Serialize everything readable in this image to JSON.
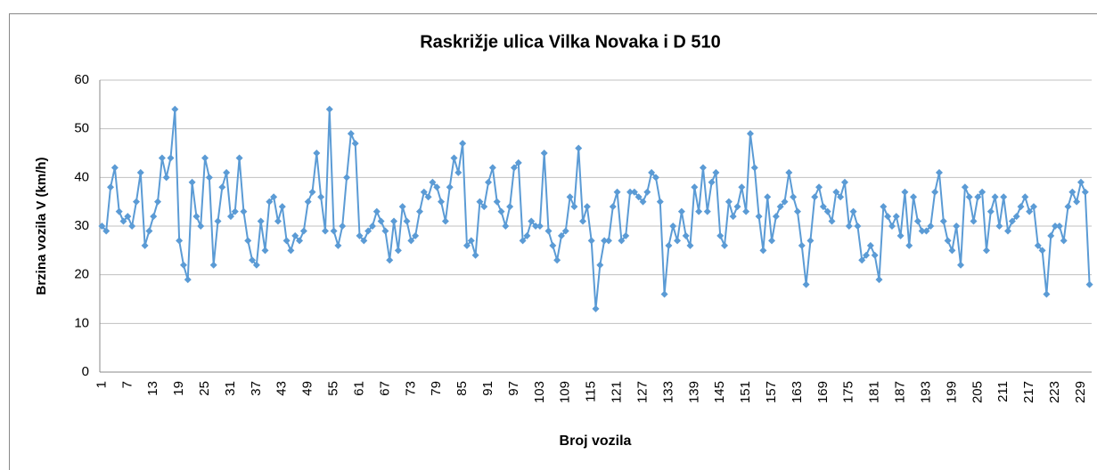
{
  "chart_data": {
    "type": "line",
    "title": "Raskrižje ulica Vilka Novaka i D 510",
    "x_label": "Broj vozila",
    "y_label": "Brzina vozila V (km/h)",
    "color": "#5b9bd5",
    "grid": true,
    "ylim": [
      0,
      60
    ],
    "yticks": [
      0,
      10,
      20,
      30,
      40,
      50,
      60
    ],
    "categories": [
      "1",
      null,
      null,
      null,
      null,
      null,
      "7",
      null,
      null,
      null,
      null,
      null,
      "13",
      null,
      null,
      null,
      null,
      null,
      "19",
      null,
      null,
      null,
      null,
      null,
      "25",
      null,
      null,
      null,
      null,
      null,
      "31",
      null,
      null,
      null,
      null,
      null,
      "37",
      null,
      null,
      null,
      null,
      null,
      "43",
      null,
      null,
      null,
      null,
      null,
      "49",
      null,
      null,
      null,
      null,
      null,
      "55",
      null,
      null,
      null,
      null,
      null,
      "61",
      null,
      null,
      null,
      null,
      null,
      "67",
      null,
      null,
      null,
      null,
      null,
      "73",
      null,
      null,
      null,
      null,
      null,
      "79",
      null,
      null,
      null,
      null,
      null,
      "85",
      null,
      null,
      null,
      null,
      null,
      "91",
      null,
      null,
      null,
      null,
      null,
      "97",
      null,
      null,
      null,
      null,
      null,
      "103",
      null,
      null,
      null,
      null,
      null,
      "109",
      null,
      null,
      null,
      null,
      null,
      "115",
      null,
      null,
      null,
      null,
      null,
      "121",
      null,
      null,
      null,
      null,
      null,
      "127",
      null,
      null,
      null,
      null,
      null,
      "133",
      null,
      null,
      null,
      null,
      null,
      "139",
      null,
      null,
      null,
      null,
      null,
      "145",
      null,
      null,
      null,
      null,
      null,
      "151",
      null,
      null,
      null,
      null,
      null,
      "157",
      null,
      null,
      null,
      null,
      null,
      "163",
      null,
      null,
      null,
      null,
      null,
      "169",
      null,
      null,
      null,
      null,
      null,
      "175",
      null,
      null,
      null,
      null,
      null,
      "181",
      null,
      null,
      null,
      null,
      null,
      "187",
      null,
      null,
      null,
      null,
      null,
      "193",
      null,
      null,
      null,
      null,
      null,
      "199",
      null,
      null,
      null,
      null,
      null,
      "205",
      null,
      null,
      null,
      null,
      null,
      "211",
      null,
      null,
      null,
      null,
      null,
      "217",
      null,
      null,
      null,
      null,
      null,
      "223",
      null,
      null,
      null,
      null,
      null,
      "229",
      null,
      null
    ],
    "values": [
      30,
      29,
      38,
      42,
      33,
      31,
      32,
      30,
      35,
      41,
      26,
      29,
      32,
      35,
      44,
      40,
      44,
      54,
      27,
      22,
      19,
      39,
      32,
      30,
      44,
      40,
      22,
      31,
      38,
      41,
      32,
      33,
      44,
      33,
      27,
      23,
      22,
      31,
      25,
      35,
      36,
      31,
      34,
      27,
      25,
      28,
      27,
      29,
      35,
      37,
      45,
      36,
      29,
      54,
      29,
      26,
      30,
      40,
      49,
      47,
      28,
      27,
      29,
      30,
      33,
      31,
      29,
      23,
      31,
      25,
      34,
      31,
      27,
      28,
      33,
      37,
      36,
      39,
      38,
      35,
      31,
      38,
      44,
      41,
      47,
      26,
      27,
      24,
      35,
      34,
      39,
      42,
      35,
      33,
      30,
      34,
      42,
      43,
      27,
      28,
      31,
      30,
      30,
      45,
      29,
      26,
      23,
      28,
      29,
      36,
      34,
      46,
      31,
      34,
      27,
      13,
      22,
      27,
      27,
      34,
      37,
      27,
      28,
      37,
      37,
      36,
      35,
      37,
      41,
      40,
      35,
      16,
      26,
      30,
      27,
      33,
      28,
      26,
      38,
      33,
      42,
      33,
      39,
      41,
      28,
      26,
      35,
      32,
      34,
      38,
      33,
      49,
      42,
      32,
      25,
      36,
      27,
      32,
      34,
      35,
      41,
      36,
      33,
      26,
      18,
      27,
      36,
      38,
      34,
      33,
      31,
      37,
      36,
      39,
      30,
      33,
      30,
      23,
      24,
      26,
      24,
      19,
      34,
      32,
      30,
      32,
      28,
      37,
      26,
      36,
      31,
      29,
      29,
      30,
      37,
      41,
      31,
      27,
      25,
      30,
      22,
      38,
      36,
      31,
      36,
      37,
      25,
      33,
      36,
      30,
      36,
      29,
      31,
      32,
      34,
      36,
      33,
      34,
      26,
      25,
      16,
      28,
      30,
      30,
      27,
      34,
      37,
      35,
      39,
      37,
      18
    ]
  }
}
